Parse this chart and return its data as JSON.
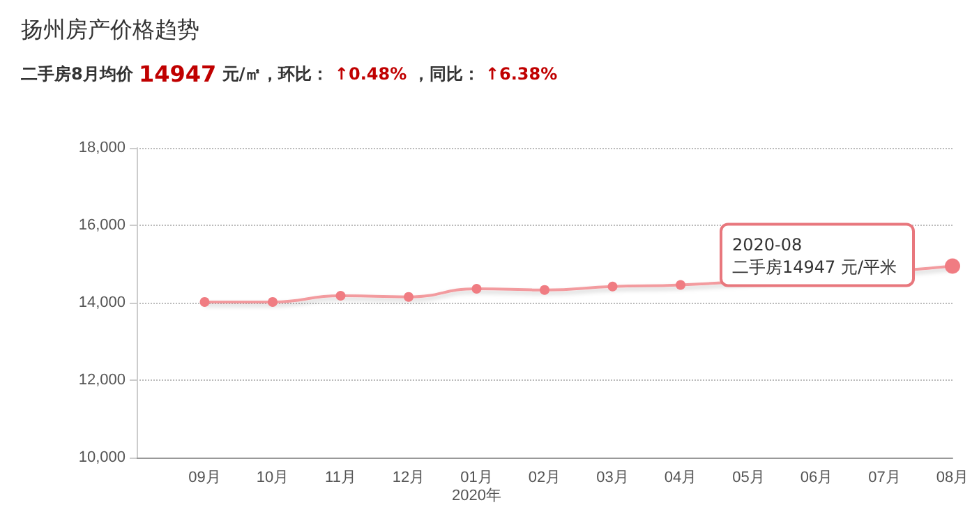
{
  "chart_data": {
    "type": "line",
    "title": "扬州房产价格趋势",
    "subtitle": "二手房8月均价 14947 元/㎡，环比： ↑0.48% ，同比： ↑6.38%",
    "categories": [
      null,
      "09月",
      "10月",
      "11月",
      "12月",
      "01月\n2020年",
      "02月",
      "03月",
      "04月",
      "05月",
      "06月",
      "07月",
      "08月"
    ],
    "series": [
      {
        "color": "#f07c82",
        "values": [
          null,
          14020,
          14020,
          14180,
          14150,
          14360,
          14330,
          14420,
          14460,
          null,
          null,
          null,
          14947
        ]
      }
    ],
    "ylim": [
      10000,
      18000
    ],
    "yticks": [
      {
        "value": 10000,
        "label": "10,000"
      },
      {
        "value": 12000,
        "label": "12,000"
      },
      {
        "value": 14000,
        "label": "14,000"
      },
      {
        "value": 16000,
        "label": "16,000"
      },
      {
        "value": 18000,
        "label": "18,000"
      }
    ],
    "grid": "y",
    "marker": "circle",
    "line_style": "solid",
    "annotations": [
      "2020-08\n二手房14947 元/平米"
    ]
  }
}
